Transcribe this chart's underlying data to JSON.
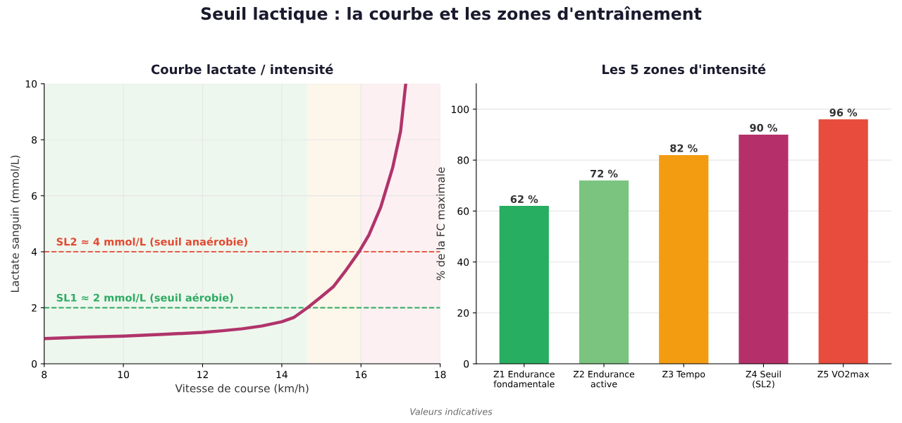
{
  "chart_data": [
    {
      "type": "line",
      "title": "Courbe lactate / intensité",
      "xlabel": "Vitesse de course (km/h)",
      "ylabel": "Lactate sanguin (mmol/L)",
      "x": [
        8,
        9,
        10,
        11,
        12,
        12.5,
        13,
        13.5,
        14,
        14.3,
        14.65,
        15,
        15.3,
        15.6,
        15.95,
        16.2,
        16.5,
        16.8,
        17,
        17.13
      ],
      "series": [
        {
          "color": "#b0346a",
          "values": [
            0.9,
            0.95,
            0.99,
            1.05,
            1.12,
            1.18,
            1.25,
            1.35,
            1.5,
            1.65,
            2.0,
            2.4,
            2.75,
            3.3,
            4.0,
            4.6,
            5.6,
            7.0,
            8.3,
            10
          ]
        }
      ],
      "xlim": [
        8,
        18
      ],
      "ylim": [
        0,
        10
      ],
      "xticks": [
        8,
        10,
        12,
        14,
        16,
        18
      ],
      "yticks": [
        0,
        2,
        4,
        6,
        8,
        10
      ],
      "grid": true,
      "marker": "none",
      "line_style": "solid",
      "ref_lines": [
        {
          "axis": "y",
          "value": 4,
          "label": "SL2 ≈ 4 mmol/L (seuil anaérobie)",
          "color": "#e24a33",
          "line_style": "dashed"
        },
        {
          "axis": "y",
          "value": 2,
          "label": "SL1 ≈ 2 mmol/L (seuil aérobie)",
          "color": "#2eaa62",
          "line_style": "dashed"
        }
      ],
      "bands": [
        {
          "axis": "x",
          "from": 8,
          "to": 14.65,
          "color": "#eef7ee"
        },
        {
          "axis": "x",
          "from": 14.65,
          "to": 16,
          "color": "#fdf6ea"
        },
        {
          "axis": "x",
          "from": 16,
          "to": 18,
          "color": "#fdf0f2"
        }
      ]
    },
    {
      "type": "bar",
      "title": "Les 5 zones d'intensité",
      "ylabel": "% de la FC maximale",
      "categories": [
        "Z1 Endurance\nfondamentale",
        "Z2 Endurance\nactive",
        "Z3 Tempo",
        "Z4 Seuil\n(SL2)",
        "Z5 VO2max"
      ],
      "values": [
        62,
        72,
        82,
        90,
        96
      ],
      "colors": [
        "#27ae60",
        "#7bc47f",
        "#f39c12",
        "#b5306a",
        "#e74c3c"
      ],
      "value_labels": [
        "62 %",
        "72 %",
        "82 %",
        "90 %",
        "96 %"
      ],
      "ylim": [
        0,
        110
      ],
      "yticks": [
        0,
        20,
        40,
        60,
        80,
        100
      ],
      "grid": "y"
    },
    {
      "type": "other",
      "title": "Seuil lactique : la courbe et les zones d'entraînement",
      "annotations": [
        "Valeurs indicatives"
      ]
    }
  ]
}
